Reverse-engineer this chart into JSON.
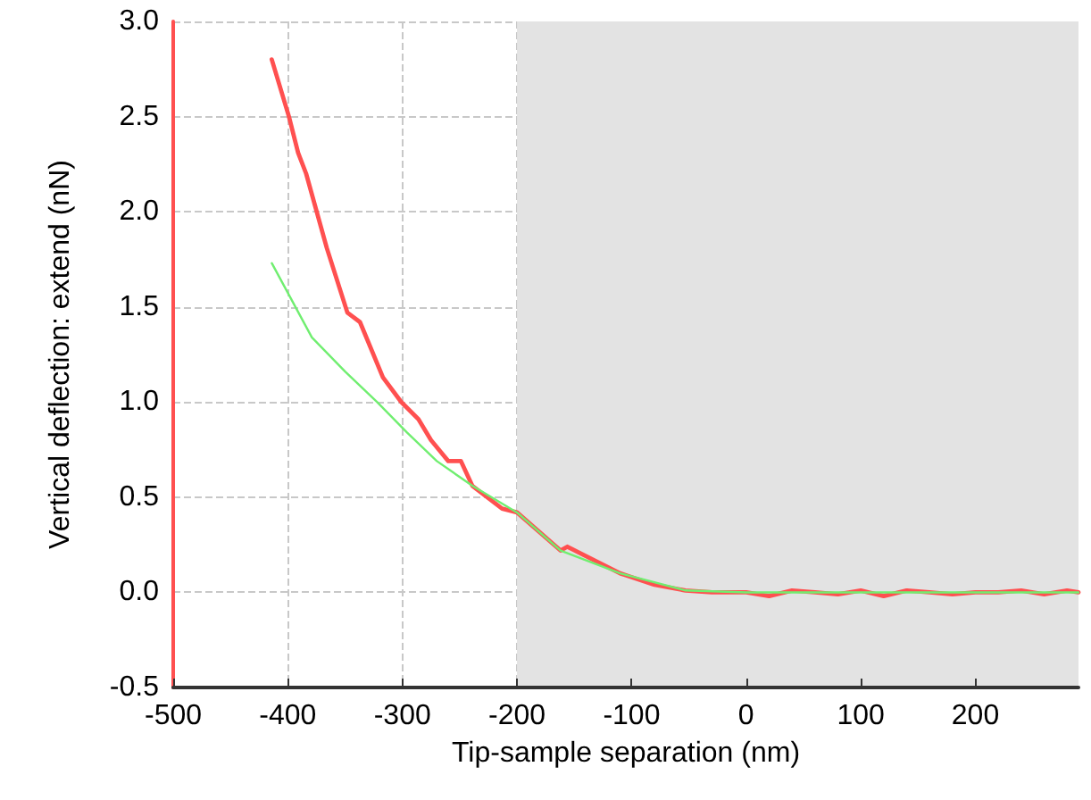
{
  "chart_data": {
    "type": "line",
    "xlabel": "Tip-sample separation (nm)",
    "ylabel": "Vertical deflection: extend (nN)",
    "xlim": [
      -500,
      290
    ],
    "xticks": [
      -500,
      -400,
      -300,
      -200,
      -100,
      0,
      100,
      200
    ],
    "ylim": [
      -0.5,
      3.0
    ],
    "yticks": [
      -0.5,
      {
        "value": 0,
        "label": "0.0"
      },
      0.5,
      {
        "value": 1,
        "label": "1.0"
      },
      1.5,
      {
        "value": 2,
        "label": "2.0"
      },
      2.5,
      {
        "value": 3,
        "label": "3.0"
      }
    ],
    "grid": true,
    "bands": [
      {
        "axis": "x",
        "from": -200,
        "to": 290,
        "color": "#e3e3e3"
      }
    ],
    "series": [
      {
        "color": "#ff5050",
        "x": [
          -414,
          -399,
          -391,
          -384,
          -366,
          -348,
          -337,
          -317,
          -301,
          -286,
          -275,
          -260,
          -249,
          -239,
          -213,
          -200,
          -162,
          -156,
          -110,
          -105,
          -80,
          -53,
          -30,
          0,
          20,
          40,
          60,
          80,
          100,
          120,
          140,
          160,
          180,
          200,
          220,
          240,
          260,
          280,
          290
        ],
        "values": [
          2.8,
          2.5,
          2.31,
          2.2,
          1.81,
          1.47,
          1.42,
          1.13,
          1.0,
          0.91,
          0.8,
          0.69,
          0.69,
          0.56,
          0.44,
          0.42,
          0.22,
          0.24,
          0.1,
          0.09,
          0.04,
          0.01,
          0.0,
          0.0,
          -0.02,
          0.01,
          0.0,
          -0.01,
          0.01,
          -0.02,
          0.01,
          0.0,
          -0.01,
          0.0,
          0.0,
          0.01,
          -0.01,
          0.01,
          0.0
        ]
      },
      {
        "color": "#70ee70",
        "x": [
          -414,
          -379,
          -350,
          -322,
          -296,
          -270,
          -239,
          -200,
          -162,
          -110,
          -53,
          0,
          100,
          200,
          290
        ],
        "values": [
          1.73,
          1.34,
          1.16,
          1.0,
          0.84,
          0.69,
          0.56,
          0.42,
          0.22,
          0.1,
          0.01,
          0.0,
          0.0,
          0.0,
          0.0
        ]
      }
    ]
  }
}
